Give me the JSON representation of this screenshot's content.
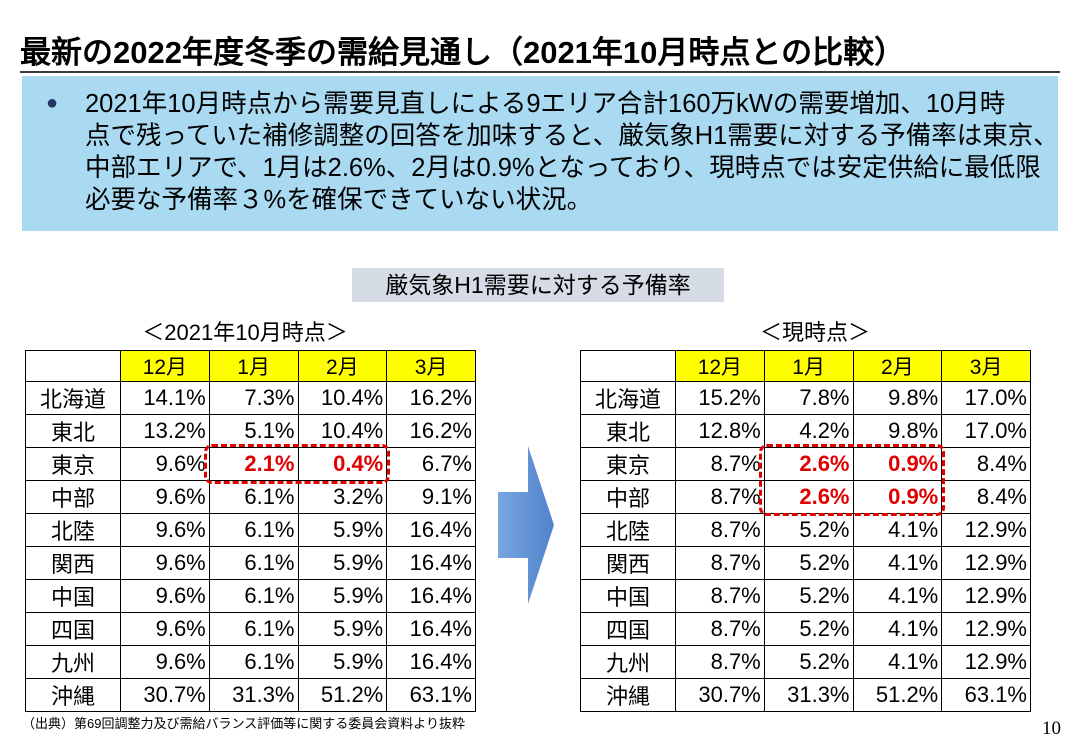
{
  "slide": {
    "title": "最新の2022年度冬季の需給見通し（2021年10月時点との比較）",
    "source": "（出典）第69回調整力及び需給バランス評価等に関する委員会資料より抜粋",
    "page_number": "10"
  },
  "summary": {
    "bullet_glyph": "●",
    "lines": [
      "2021年10月時点から需要見直しによる9エリア合計160万kWの需要増加、10月時",
      "点で残っていた補修調整の回答を加味すると、厳気象H1需要に対する予備率は東京、",
      "中部エリアで、1月は2.6%、2月は0.9%となっており、現時点では安定供給に最低限",
      "必要な予備率３%を確保できていない状況。"
    ]
  },
  "subtitle": "厳気象H1需要に対する予備率",
  "colors": {
    "summary_box": "#a9daf2",
    "subtitle_bg": "#d6dce5",
    "header_yellow": "#ffff00",
    "emphasis_red": "#e00000",
    "arrow_blue": "#5b8fd6",
    "bullet_navy": "#1f3864"
  },
  "icons": {
    "arrow": "right-arrow-icon",
    "bullet": "bullet-icon"
  },
  "tables": [
    {
      "caption": "＜2021年10月時点＞",
      "columns": [
        "12月",
        "1月",
        "2月",
        "3月"
      ],
      "rows": [
        {
          "region": "北海道",
          "values": [
            "14.1%",
            "7.3%",
            "10.4%",
            "16.2%"
          ],
          "emphasis": [
            false,
            false,
            false,
            false
          ]
        },
        {
          "region": "東北",
          "values": [
            "13.2%",
            "5.1%",
            "10.4%",
            "16.2%"
          ],
          "emphasis": [
            false,
            false,
            false,
            false
          ]
        },
        {
          "region": "東京",
          "values": [
            "9.6%",
            "2.1%",
            "0.4%",
            "6.7%"
          ],
          "emphasis": [
            false,
            true,
            true,
            false
          ]
        },
        {
          "region": "中部",
          "values": [
            "9.6%",
            "6.1%",
            "3.2%",
            "9.1%"
          ],
          "emphasis": [
            false,
            false,
            false,
            false
          ]
        },
        {
          "region": "北陸",
          "values": [
            "9.6%",
            "6.1%",
            "5.9%",
            "16.4%"
          ],
          "emphasis": [
            false,
            false,
            false,
            false
          ]
        },
        {
          "region": "関西",
          "values": [
            "9.6%",
            "6.1%",
            "5.9%",
            "16.4%"
          ],
          "emphasis": [
            false,
            false,
            false,
            false
          ]
        },
        {
          "region": "中国",
          "values": [
            "9.6%",
            "6.1%",
            "5.9%",
            "16.4%"
          ],
          "emphasis": [
            false,
            false,
            false,
            false
          ]
        },
        {
          "region": "四国",
          "values": [
            "9.6%",
            "6.1%",
            "5.9%",
            "16.4%"
          ],
          "emphasis": [
            false,
            false,
            false,
            false
          ]
        },
        {
          "region": "九州",
          "values": [
            "9.6%",
            "6.1%",
            "5.9%",
            "16.4%"
          ],
          "emphasis": [
            false,
            false,
            false,
            false
          ]
        },
        {
          "region": "沖縄",
          "values": [
            "30.7%",
            "31.3%",
            "51.2%",
            "63.1%"
          ],
          "emphasis": [
            false,
            false,
            false,
            false
          ]
        }
      ]
    },
    {
      "caption": "＜現時点＞",
      "columns": [
        "12月",
        "1月",
        "2月",
        "3月"
      ],
      "rows": [
        {
          "region": "北海道",
          "values": [
            "15.2%",
            "7.8%",
            "9.8%",
            "17.0%"
          ],
          "emphasis": [
            false,
            false,
            false,
            false
          ]
        },
        {
          "region": "東北",
          "values": [
            "12.8%",
            "4.2%",
            "9.8%",
            "17.0%"
          ],
          "emphasis": [
            false,
            false,
            false,
            false
          ]
        },
        {
          "region": "東京",
          "values": [
            "8.7%",
            "2.6%",
            "0.9%",
            "8.4%"
          ],
          "emphasis": [
            false,
            true,
            true,
            false
          ]
        },
        {
          "region": "中部",
          "values": [
            "8.7%",
            "2.6%",
            "0.9%",
            "8.4%"
          ],
          "emphasis": [
            false,
            true,
            true,
            false
          ]
        },
        {
          "region": "北陸",
          "values": [
            "8.7%",
            "5.2%",
            "4.1%",
            "12.9%"
          ],
          "emphasis": [
            false,
            false,
            false,
            false
          ]
        },
        {
          "region": "関西",
          "values": [
            "8.7%",
            "5.2%",
            "4.1%",
            "12.9%"
          ],
          "emphasis": [
            false,
            false,
            false,
            false
          ]
        },
        {
          "region": "中国",
          "values": [
            "8.7%",
            "5.2%",
            "4.1%",
            "12.9%"
          ],
          "emphasis": [
            false,
            false,
            false,
            false
          ]
        },
        {
          "region": "四国",
          "values": [
            "8.7%",
            "5.2%",
            "4.1%",
            "12.9%"
          ],
          "emphasis": [
            false,
            false,
            false,
            false
          ]
        },
        {
          "region": "九州",
          "values": [
            "8.7%",
            "5.2%",
            "4.1%",
            "12.9%"
          ],
          "emphasis": [
            false,
            false,
            false,
            false
          ]
        },
        {
          "region": "沖縄",
          "values": [
            "30.7%",
            "31.3%",
            "51.2%",
            "63.1%"
          ],
          "emphasis": [
            false,
            false,
            false,
            false
          ]
        }
      ]
    }
  ]
}
